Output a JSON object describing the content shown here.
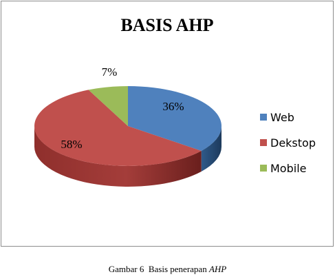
{
  "chart_data": {
    "type": "pie",
    "title": "BASIS AHP",
    "categories": [
      "Web",
      "Dekstop",
      "Mobile"
    ],
    "values": [
      36,
      58,
      7
    ],
    "labels": [
      "36%",
      "58%",
      "7%"
    ],
    "colors": [
      "#4f81bd",
      "#c0504d",
      "#9bbb59"
    ],
    "three_d": true,
    "legend": "right"
  },
  "caption": {
    "prefix": "Gambar 6  Basis penerapan ",
    "emphasis": "AHP"
  }
}
